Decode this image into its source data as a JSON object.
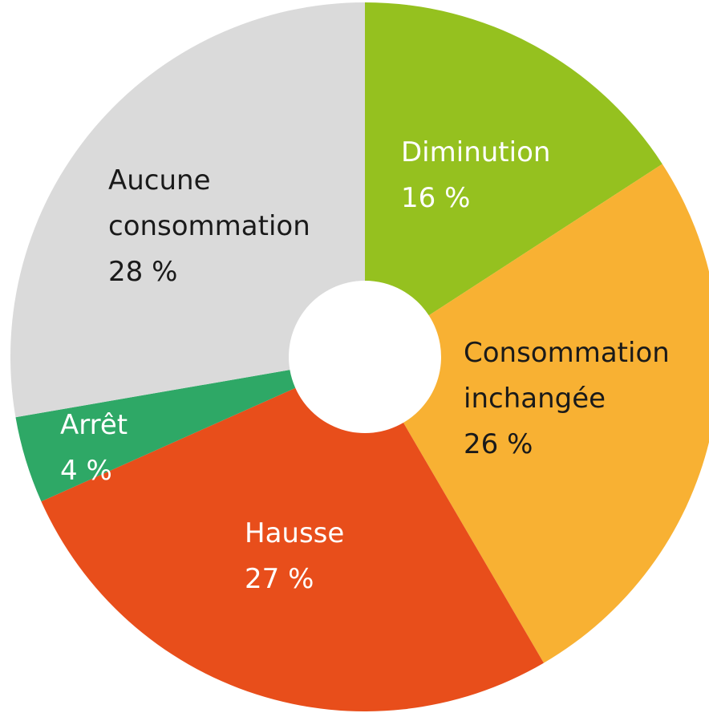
{
  "chart_data": {
    "type": "donut",
    "categories": [
      "Diminution",
      "Consommation inchangée",
      "Hausse",
      "Arrêt",
      "Aucune consommation"
    ],
    "values": [
      16,
      26,
      27,
      4,
      28
    ],
    "value_labels": [
      "16 %",
      "26 %",
      "27 %",
      "4 %",
      "28 %"
    ],
    "colors": [
      "#95c11f",
      "#f8b133",
      "#e84e1b",
      "#2ea866",
      "#dadada"
    ],
    "label_colors": [
      "#ffffff",
      "#1a1a1a",
      "#ffffff",
      "#ffffff",
      "#1a1a1a"
    ]
  }
}
